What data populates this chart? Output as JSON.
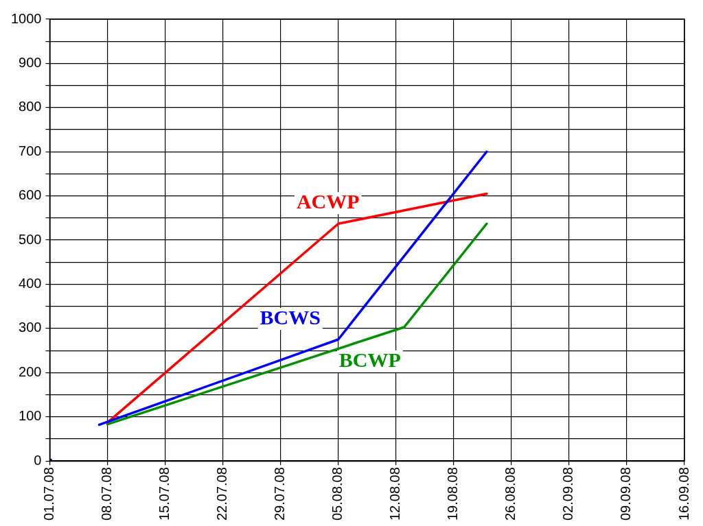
{
  "chart_data": {
    "type": "line",
    "xlim": [
      "--07-01",
      "--09-16"
    ],
    "xticks": [
      {
        "value": "--07-01",
        "label": "01.07.08"
      },
      {
        "value": "--07-08",
        "label": "08.07.08"
      },
      {
        "value": "--07-15",
        "label": "15.07.08"
      },
      {
        "value": "--07-22",
        "label": "22.07.08"
      },
      {
        "value": "--07-29",
        "label": "29.07.08"
      },
      {
        "value": "--08-05",
        "label": "05.08.08"
      },
      {
        "value": "--08-12",
        "label": "12.08.08"
      },
      {
        "value": "--08-19",
        "label": "19.08.08"
      },
      {
        "value": "--08-26",
        "label": "26.08.08"
      },
      {
        "value": "--09-02",
        "label": "02.09.08"
      },
      {
        "value": "--09-09",
        "label": "09.09.08"
      },
      {
        "value": "--09-16",
        "label": "16.09.08"
      }
    ],
    "ylim": [
      0,
      1000
    ],
    "yticks": [
      0,
      {
        "value": 50,
        "label": null
      },
      100,
      {
        "value": 150,
        "label": null
      },
      200,
      {
        "value": 250,
        "label": null
      },
      300,
      {
        "value": 350,
        "label": null
      },
      400,
      {
        "value": 450,
        "label": null
      },
      500,
      {
        "value": 550,
        "label": null
      },
      600,
      {
        "value": 650,
        "label": null
      },
      700,
      {
        "value": 750,
        "label": null
      },
      800,
      {
        "value": 850,
        "label": null
      },
      900,
      {
        "value": 950,
        "label": null
      },
      1000
    ],
    "grid": true,
    "legend": false,
    "marker": "none",
    "line_style": "solid",
    "series": [
      {
        "type": "scatter",
        "color": "#000080",
        "marker": "circle",
        "x": [
          "--07-01"
        ],
        "values": [
          0
        ]
      },
      {
        "name": "BCWS",
        "color": "#0000ff",
        "x": [
          "--07-07",
          "--08-05",
          "--08-23"
        ],
        "values": [
          82,
          275,
          700
        ]
      },
      {
        "name": "ACWP",
        "color": "#ff0000",
        "x": [
          "--07-08",
          "--08-05",
          "--08-23"
        ],
        "values": [
          87,
          537,
          605
        ]
      },
      {
        "name": "BCWP",
        "color": "#009000",
        "x": [
          "--07-08",
          "--08-13",
          "--08-23"
        ],
        "values": [
          83,
          303,
          537
        ]
      }
    ]
  }
}
